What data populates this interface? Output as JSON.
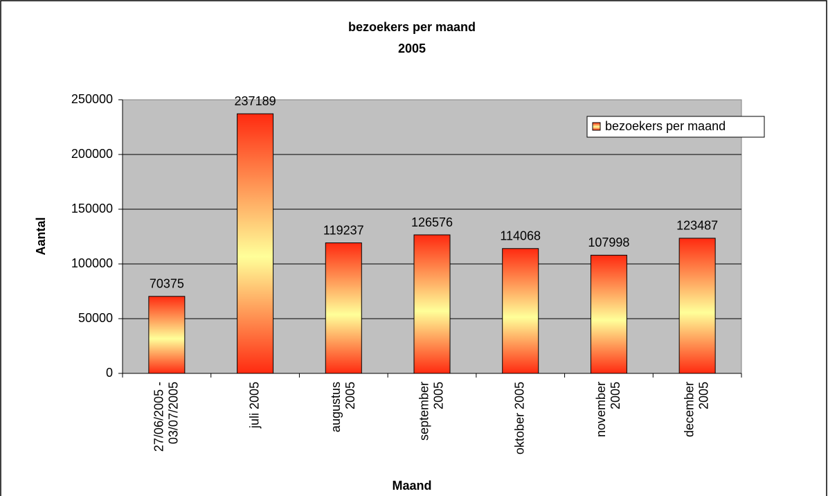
{
  "chart_data": {
    "type": "bar",
    "title": "bezoekers per maand",
    "subtitle": "2005",
    "x_label": "Maand",
    "y_label": "Aantal",
    "categories": [
      "27/06/2005 - 03/07/2005",
      "juli 2005",
      "augustus 2005",
      "september 2005",
      "oktober 2005",
      "november 2005",
      "december 2005"
    ],
    "series": [
      {
        "name": "bezoekers per maand",
        "color": "#ff2a10",
        "values": [
          70375,
          237189,
          119237,
          126576,
          114068,
          107998,
          123487
        ]
      }
    ],
    "ylim": [
      0,
      250000
    ],
    "yticks": [
      0,
      50000,
      100000,
      150000,
      200000,
      250000
    ],
    "grid": true,
    "legend": "upper right"
  }
}
